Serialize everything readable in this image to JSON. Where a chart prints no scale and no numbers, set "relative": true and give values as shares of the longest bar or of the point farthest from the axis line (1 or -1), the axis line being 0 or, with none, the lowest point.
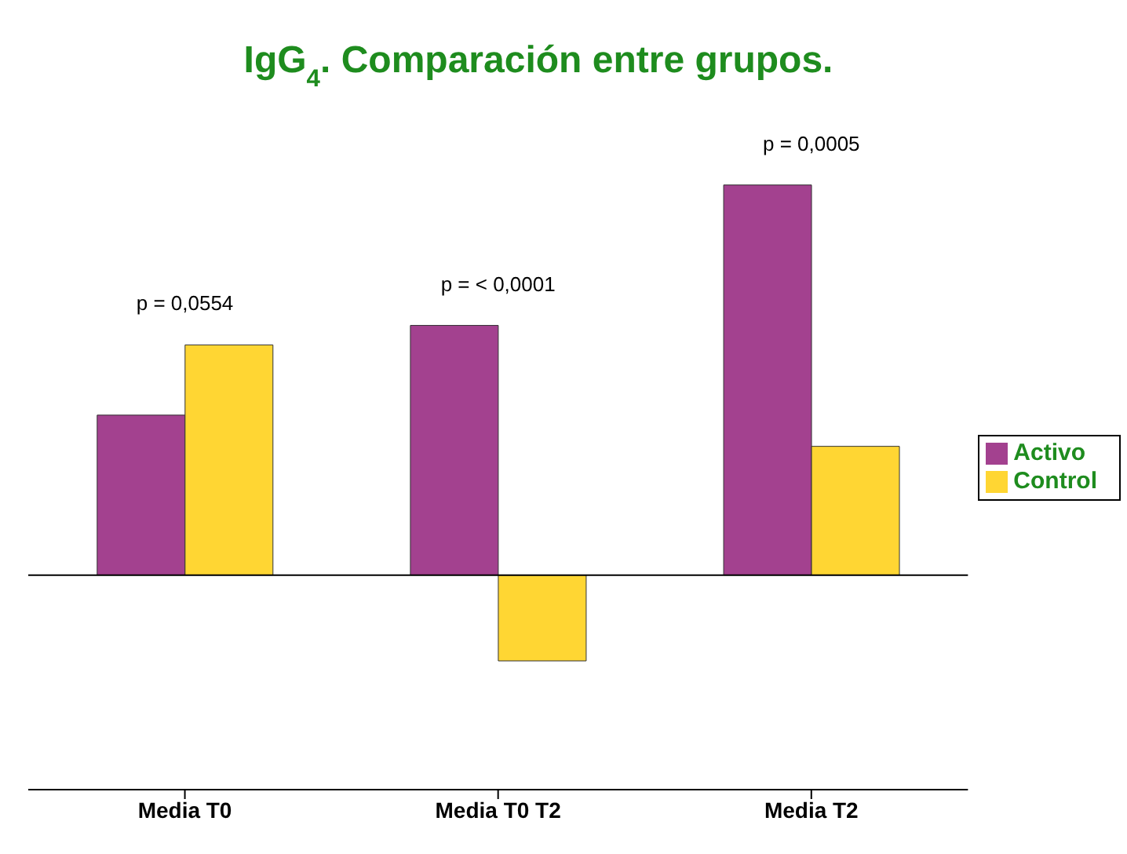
{
  "chart_data": {
    "type": "bar",
    "title": "IgG$_{4}$. Comparación entre grupos.",
    "relative": true,
    "categories": [
      "Media T0",
      "Media T0  T2",
      "Media T2"
    ],
    "series": [
      {
        "name": "Activo",
        "color": "#a3418f",
        "values": [
          0.41,
          0.64,
          1
        ]
      },
      {
        "name": "Control",
        "color": "#ffd633",
        "values": [
          0.59,
          -0.22,
          0.33
        ]
      }
    ],
    "annotations": [
      "p = 0,0554",
      "p = < 0,0001",
      "p = 0,0005"
    ],
    "legend": "right"
  }
}
